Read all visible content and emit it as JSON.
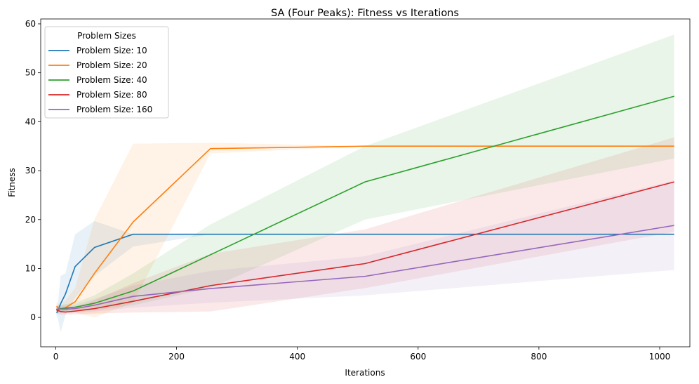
{
  "chart_data": {
    "type": "line",
    "title": "SA (Four Peaks): Fitness vs Iterations",
    "xlabel": "Iterations",
    "ylabel": "Fitness",
    "xlim": [
      -25,
      1050
    ],
    "ylim": [
      -6,
      61
    ],
    "xticks": [
      0,
      200,
      400,
      600,
      800,
      1000
    ],
    "yticks": [
      0,
      10,
      20,
      30,
      40,
      50,
      60
    ],
    "grid": false,
    "legend": {
      "title": "Problem Sizes",
      "placement": "top-left"
    },
    "x": [
      1,
      2,
      4,
      8,
      16,
      32,
      64,
      128,
      256,
      512,
      1024
    ],
    "series": [
      {
        "name": "Problem Size: 10",
        "color": "#1f77b4",
        "values": [
          1.0,
          1.0,
          1.6,
          2.8,
          4.8,
          10.4,
          14.3,
          17.0,
          17.0,
          17.0,
          17.0
        ],
        "band_low": [
          0.5,
          0.2,
          -0.5,
          -3.0,
          0.5,
          4.0,
          8.5,
          14.5,
          17.0,
          17.0,
          17.0
        ],
        "band_high": [
          1.5,
          2.0,
          3.5,
          8.5,
          9.0,
          17.0,
          19.7,
          17.0,
          17.0,
          17.0,
          17.0
        ]
      },
      {
        "name": "Problem Size: 20",
        "color": "#ff7f0e",
        "values": [
          2.2,
          2.2,
          2.0,
          1.8,
          2.0,
          3.2,
          9.0,
          19.5,
          34.5,
          35.0,
          35.0
        ],
        "band_low": [
          1.5,
          1.5,
          1.2,
          1.0,
          1.0,
          1.0,
          0.0,
          3.0,
          33.5,
          35.0,
          35.0
        ],
        "band_high": [
          3.0,
          3.0,
          2.8,
          2.6,
          3.5,
          6.0,
          20.0,
          35.5,
          35.7,
          35.0,
          35.0
        ]
      },
      {
        "name": "Problem Size: 40",
        "color": "#2ca02c",
        "values": [
          1.5,
          1.6,
          1.7,
          1.8,
          1.9,
          2.1,
          2.9,
          5.4,
          12.8,
          27.7,
          45.2
        ],
        "band_low": [
          0.8,
          0.9,
          1.0,
          1.1,
          1.2,
          1.3,
          1.5,
          2.5,
          6.0,
          20.0,
          32.5
        ],
        "band_high": [
          2.3,
          2.4,
          2.5,
          2.6,
          2.7,
          3.0,
          4.5,
          9.0,
          19.0,
          35.0,
          57.8
        ]
      },
      {
        "name": "Problem Size: 80",
        "color": "#d62728",
        "values": [
          1.6,
          1.5,
          1.4,
          1.2,
          1.1,
          1.3,
          1.8,
          3.3,
          6.5,
          11.0,
          27.7
        ],
        "band_low": [
          0.8,
          0.8,
          0.7,
          0.6,
          0.6,
          0.6,
          0.8,
          1.0,
          1.2,
          6.0,
          17.5
        ],
        "band_high": [
          2.5,
          2.4,
          2.2,
          2.0,
          1.8,
          2.0,
          3.5,
          7.0,
          13.0,
          18.0,
          36.8
        ]
      },
      {
        "name": "Problem Size: 160",
        "color": "#9467bd",
        "values": [
          1.7,
          1.7,
          1.7,
          1.7,
          1.7,
          1.8,
          2.5,
          4.3,
          5.9,
          8.4,
          18.8
        ],
        "band_low": [
          1.0,
          1.0,
          1.0,
          1.0,
          1.0,
          1.0,
          1.2,
          2.0,
          3.0,
          4.5,
          9.7
        ],
        "band_high": [
          2.4,
          2.4,
          2.4,
          2.4,
          2.4,
          2.6,
          3.8,
          6.5,
          9.5,
          12.5,
          28.0
        ]
      }
    ]
  }
}
